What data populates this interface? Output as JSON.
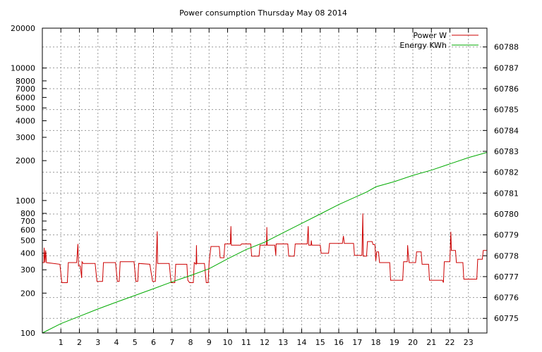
{
  "chart_data": {
    "type": "line",
    "title": "Power consumption Thursday May 08 2014",
    "xlabel": "",
    "ylabel": "",
    "x_axis": {
      "range": [
        0,
        24
      ],
      "ticks": [
        "1",
        "2",
        "3",
        "4",
        "5",
        "6",
        "7",
        "8",
        "9",
        "10",
        "11",
        "12",
        "13",
        "14",
        "15",
        "16",
        "17",
        "18",
        "19",
        "20",
        "21",
        "22",
        "23"
      ]
    },
    "y_left": {
      "scale": "log",
      "range": [
        100,
        20000
      ],
      "ticks": [
        100,
        200,
        300,
        400,
        500,
        600,
        700,
        800,
        1000,
        2000,
        3000,
        4000,
        5000,
        6000,
        7000,
        8000,
        10000,
        20000
      ],
      "tick_labels": [
        "100",
        "200",
        "300",
        "400",
        "500",
        "600",
        "700",
        "800",
        "1000",
        "2000",
        "3000",
        "4000",
        "5000",
        "6000",
        "7000",
        "8000",
        "10000",
        "20000"
      ]
    },
    "y_right": {
      "scale": "linear",
      "range": [
        60774.3,
        60788.9
      ],
      "ticks": [
        60775,
        60776,
        60777,
        60778,
        60779,
        60780,
        60781,
        60782,
        60783,
        60784,
        60785,
        60786,
        60787,
        60788
      ],
      "tick_labels": [
        "60775",
        "60776",
        "60777",
        "60778",
        "60779",
        "60780",
        "60781",
        "60782",
        "60783",
        "60784",
        "60785",
        "60786",
        "60787",
        "60788"
      ]
    },
    "grid": true,
    "legend_position": "top-right",
    "series": [
      {
        "name": "Power W",
        "color": "#cc0000",
        "axis": "left",
        "points": [
          [
            0.0,
            340
          ],
          [
            0.08,
            340
          ],
          [
            0.1,
            440
          ],
          [
            0.14,
            340
          ],
          [
            0.18,
            420
          ],
          [
            0.22,
            340
          ],
          [
            0.6,
            335
          ],
          [
            0.95,
            330
          ],
          [
            1.05,
            240
          ],
          [
            1.35,
            240
          ],
          [
            1.4,
            340
          ],
          [
            1.85,
            340
          ],
          [
            1.92,
            470
          ],
          [
            1.95,
            320
          ],
          [
            2.05,
            320
          ],
          [
            2.12,
            260
          ],
          [
            2.14,
            345
          ],
          [
            2.2,
            335
          ],
          [
            2.85,
            335
          ],
          [
            2.95,
            245
          ],
          [
            3.25,
            245
          ],
          [
            3.3,
            340
          ],
          [
            3.95,
            340
          ],
          [
            4.05,
            245
          ],
          [
            4.15,
            245
          ],
          [
            4.2,
            345
          ],
          [
            4.95,
            345
          ],
          [
            5.05,
            245
          ],
          [
            5.15,
            245
          ],
          [
            5.2,
            335
          ],
          [
            5.8,
            330
          ],
          [
            5.95,
            245
          ],
          [
            6.1,
            245
          ],
          [
            6.15,
            345
          ],
          [
            6.2,
            585
          ],
          [
            6.22,
            335
          ],
          [
            6.85,
            335
          ],
          [
            6.95,
            240
          ],
          [
            7.15,
            240
          ],
          [
            7.2,
            330
          ],
          [
            7.8,
            330
          ],
          [
            7.85,
            250
          ],
          [
            7.95,
            240
          ],
          [
            8.15,
            240
          ],
          [
            8.2,
            340
          ],
          [
            8.3,
            330
          ],
          [
            8.32,
            460
          ],
          [
            8.34,
            335
          ],
          [
            8.75,
            335
          ],
          [
            8.85,
            240
          ],
          [
            8.95,
            240
          ],
          [
            9.0,
            340
          ],
          [
            9.1,
            450
          ],
          [
            9.55,
            450
          ],
          [
            9.6,
            370
          ],
          [
            9.8,
            370
          ],
          [
            9.85,
            470
          ],
          [
            10.15,
            470
          ],
          [
            10.18,
            640
          ],
          [
            10.2,
            460
          ],
          [
            10.7,
            460
          ],
          [
            10.75,
            470
          ],
          [
            11.25,
            470
          ],
          [
            11.3,
            380
          ],
          [
            11.7,
            380
          ],
          [
            11.75,
            460
          ],
          [
            12.1,
            460
          ],
          [
            12.12,
            630
          ],
          [
            12.14,
            460
          ],
          [
            12.55,
            460
          ],
          [
            12.6,
            385
          ],
          [
            12.62,
            470
          ],
          [
            13.25,
            470
          ],
          [
            13.3,
            380
          ],
          [
            13.6,
            380
          ],
          [
            13.65,
            470
          ],
          [
            14.3,
            470
          ],
          [
            14.35,
            640
          ],
          [
            14.38,
            460
          ],
          [
            14.5,
            460
          ],
          [
            14.52,
            500
          ],
          [
            14.55,
            460
          ],
          [
            15.0,
            460
          ],
          [
            15.05,
            400
          ],
          [
            15.45,
            400
          ],
          [
            15.5,
            475
          ],
          [
            16.2,
            475
          ],
          [
            16.25,
            540
          ],
          [
            16.3,
            475
          ],
          [
            16.8,
            475
          ],
          [
            16.85,
            385
          ],
          [
            17.25,
            385
          ],
          [
            17.3,
            800
          ],
          [
            17.32,
            380
          ],
          [
            17.5,
            380
          ],
          [
            17.55,
            490
          ],
          [
            17.8,
            490
          ],
          [
            17.85,
            465
          ],
          [
            17.95,
            465
          ],
          [
            18.0,
            350
          ],
          [
            18.05,
            410
          ],
          [
            18.15,
            410
          ],
          [
            18.2,
            340
          ],
          [
            18.75,
            340
          ],
          [
            18.8,
            250
          ],
          [
            19.45,
            250
          ],
          [
            19.5,
            345
          ],
          [
            19.7,
            345
          ],
          [
            19.72,
            460
          ],
          [
            19.75,
            400
          ],
          [
            19.8,
            340
          ],
          [
            20.15,
            340
          ],
          [
            20.2,
            410
          ],
          [
            20.45,
            410
          ],
          [
            20.5,
            330
          ],
          [
            20.85,
            330
          ],
          [
            20.9,
            250
          ],
          [
            21.6,
            250
          ],
          [
            21.65,
            240
          ],
          [
            21.7,
            345
          ],
          [
            22.0,
            345
          ],
          [
            22.05,
            580
          ],
          [
            22.08,
            420
          ],
          [
            22.3,
            420
          ],
          [
            22.35,
            340
          ],
          [
            22.7,
            340
          ],
          [
            22.75,
            255
          ],
          [
            23.45,
            255
          ],
          [
            23.5,
            360
          ],
          [
            23.75,
            360
          ],
          [
            23.8,
            420
          ],
          [
            24.0,
            420
          ]
        ]
      },
      {
        "name": "Energy KWh",
        "color": "#00aa00",
        "axis": "right",
        "points": [
          [
            0.0,
            60774.3
          ],
          [
            1.0,
            60774.75
          ],
          [
            2.0,
            60775.1
          ],
          [
            3.0,
            60775.45
          ],
          [
            4.0,
            60775.78
          ],
          [
            5.0,
            60776.1
          ],
          [
            6.0,
            60776.42
          ],
          [
            7.0,
            60776.75
          ],
          [
            8.0,
            60777.05
          ],
          [
            9.0,
            60777.38
          ],
          [
            10.0,
            60777.85
          ],
          [
            11.0,
            60778.3
          ],
          [
            12.0,
            60778.65
          ],
          [
            13.0,
            60779.1
          ],
          [
            14.0,
            60779.55
          ],
          [
            15.0,
            60780.0
          ],
          [
            16.0,
            60780.45
          ],
          [
            17.0,
            60780.85
          ],
          [
            17.5,
            60781.05
          ],
          [
            18.0,
            60781.3
          ],
          [
            19.0,
            60781.55
          ],
          [
            20.0,
            60781.85
          ],
          [
            21.0,
            60782.1
          ],
          [
            22.0,
            60782.4
          ],
          [
            23.0,
            60782.7
          ],
          [
            24.0,
            60782.95
          ]
        ]
      }
    ]
  }
}
